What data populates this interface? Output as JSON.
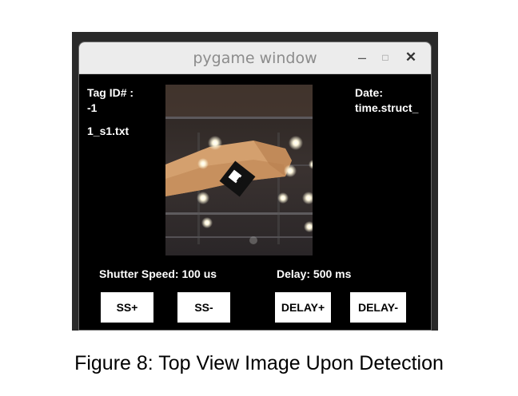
{
  "window": {
    "title": "pygame window",
    "controls": {
      "minimize": "–",
      "maximize": "□",
      "close": "✕"
    }
  },
  "info": {
    "tag_label": "Tag ID# :",
    "tag_value": "-1",
    "file_name": "1_s1.txt",
    "date_label": "Date:",
    "date_value": "time.struct_"
  },
  "settings": {
    "shutter_speed": "Shutter Speed: 100 us",
    "delay": "Delay: 500 ms"
  },
  "buttons": {
    "ss_plus": "SS+",
    "ss_minus": "SS-",
    "delay_plus": "DELAY+",
    "delay_minus": "DELAY-"
  },
  "caption": "Figure 8: Top View Image Upon Detection"
}
